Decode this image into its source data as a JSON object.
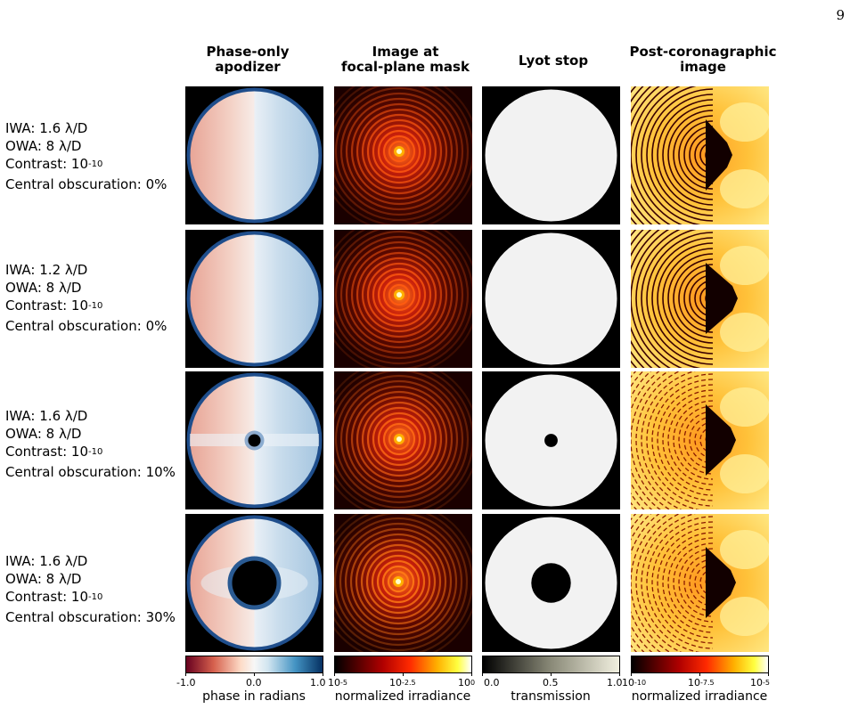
{
  "page_number": "9",
  "columns": [
    {
      "title_line1": "Phase-only",
      "title_line2": "apodizer"
    },
    {
      "title_line1": "Image at",
      "title_line2": "focal-plane mask"
    },
    {
      "title_line1": "Lyot stop",
      "title_line2": ""
    },
    {
      "title_line1": "Post-coronagraphic",
      "title_line2": "image"
    }
  ],
  "rows": [
    {
      "iwa": "IWA: 1.6 λ/D",
      "owa": "OWA: 8 λ/D",
      "contrast_prefix": "Contrast: 10",
      "contrast_exp": "-10",
      "obscuration": "Central obscuration: 0%",
      "obscuration_fraction": 0.0
    },
    {
      "iwa": "IWA: 1.2 λ/D",
      "owa": "OWA: 8 λ/D",
      "contrast_prefix": "Contrast: 10",
      "contrast_exp": "-10",
      "obscuration": "Central obscuration: 0%",
      "obscuration_fraction": 0.0
    },
    {
      "iwa": "IWA: 1.6 λ/D",
      "owa": "OWA: 8 λ/D",
      "contrast_prefix": "Contrast: 10",
      "contrast_exp": "-10",
      "obscuration": "Central obscuration: 10%",
      "obscuration_fraction": 0.1
    },
    {
      "iwa": "IWA: 1.6 λ/D",
      "owa": "OWA: 8 λ/D",
      "contrast_prefix": "Contrast: 10",
      "contrast_exp": "-10",
      "obscuration": "Central obscuration: 30%",
      "obscuration_fraction": 0.3
    }
  ],
  "colorbars": [
    {
      "label": "phase in radians",
      "colormap": "RdBu",
      "ticks": [
        {
          "base": "-1.0",
          "exp": ""
        },
        {
          "base": "0.0",
          "exp": ""
        },
        {
          "base": "1.0",
          "exp": ""
        }
      ]
    },
    {
      "label": "normalized irradiance",
      "colormap": "hot",
      "ticks": [
        {
          "base": "10",
          "exp": "-5"
        },
        {
          "base": "10",
          "exp": "-2.5"
        },
        {
          "base": "10",
          "exp": "0"
        }
      ]
    },
    {
      "label": "transmission",
      "colormap": "gray",
      "ticks": [
        {
          "base": "0.0",
          "exp": ""
        },
        {
          "base": "0.5",
          "exp": ""
        },
        {
          "base": "1.0",
          "exp": ""
        }
      ]
    },
    {
      "label": "normalized irradiance",
      "colormap": "hot",
      "ticks": [
        {
          "base": "10",
          "exp": "-10"
        },
        {
          "base": "10",
          "exp": "-7.5"
        },
        {
          "base": "10",
          "exp": "-5"
        }
      ]
    }
  ],
  "colors": {
    "phase_neg": "#b2182b",
    "phase_zero": "#f7f7f7",
    "phase_pos": "#2166ac",
    "hot_low": "#000000",
    "hot_mid": "#e31a1c",
    "hot_high": "#ffff66",
    "lyot_open": "#f2f2f2",
    "lyot_block": "#000000"
  }
}
